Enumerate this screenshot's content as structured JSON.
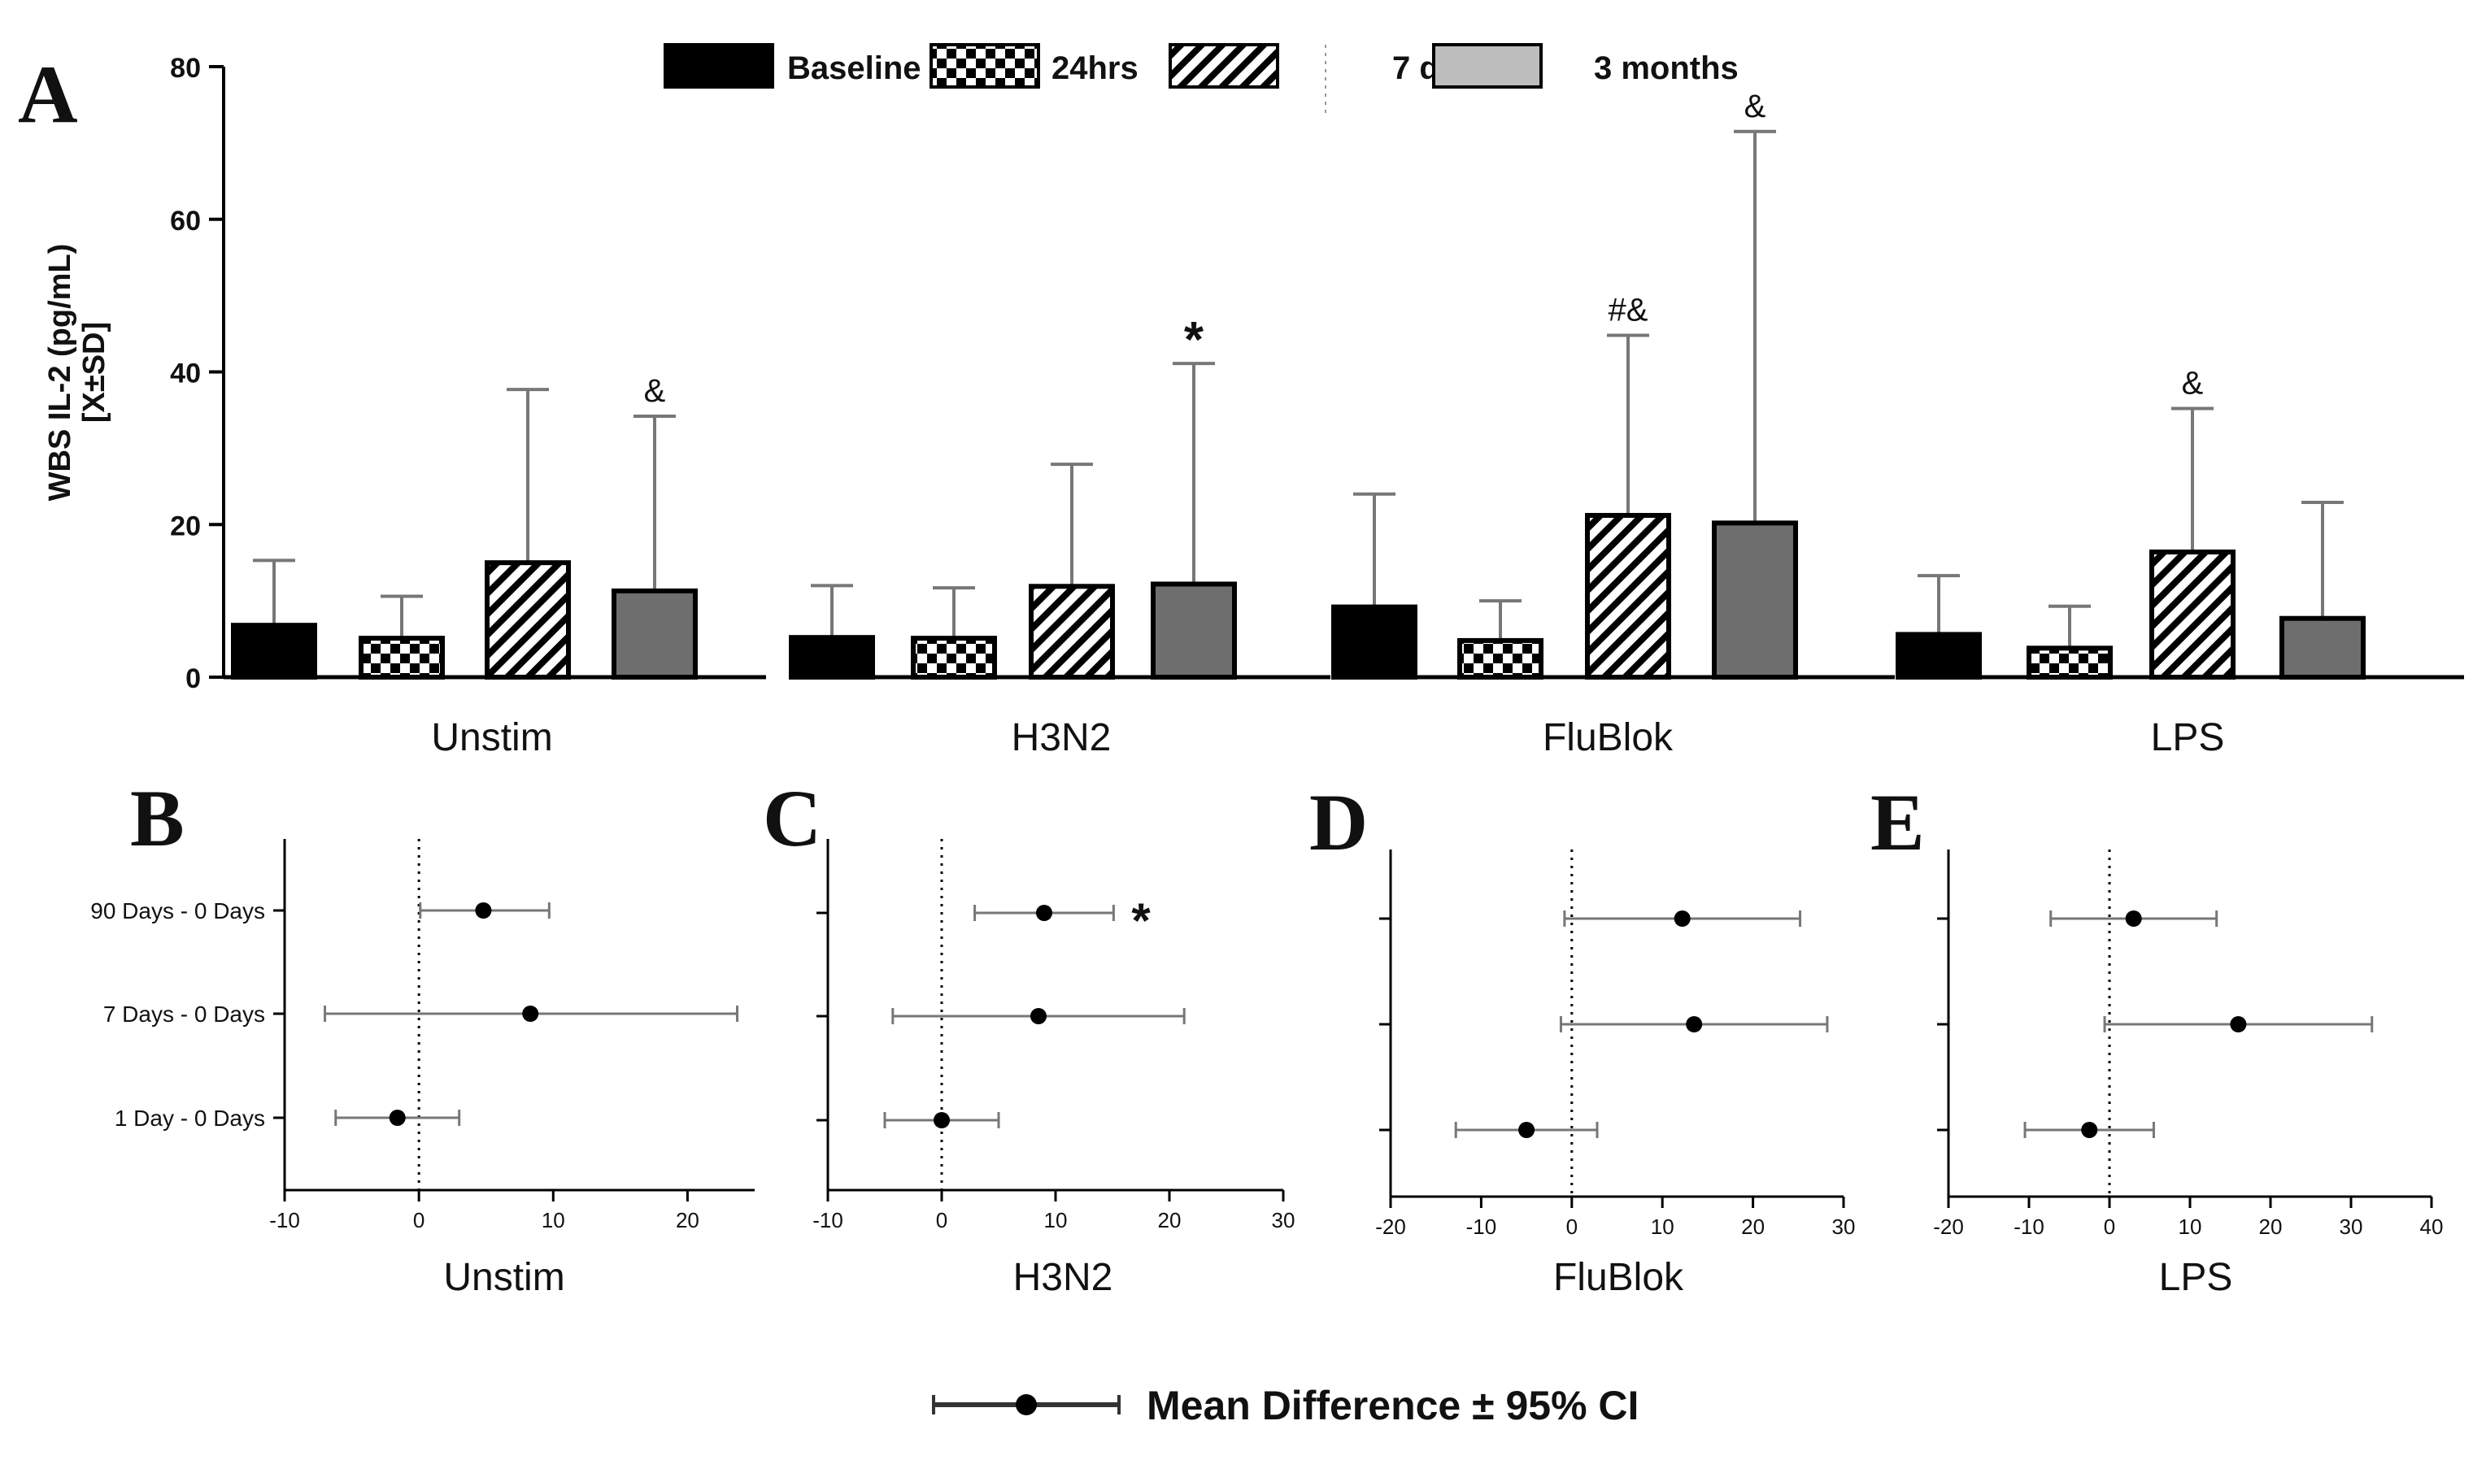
{
  "chart_data": [
    {
      "panel": "A",
      "type": "bar",
      "ylabel": "WBS IL-2 (pg/mL)",
      "ylabel_line2": "[X±SD]",
      "ylim": [
        0,
        80
      ],
      "yticks": [
        0,
        20,
        40,
        60,
        80
      ],
      "categories": [
        "Unstim",
        "H3N2",
        "FluBlok",
        "LPS"
      ],
      "legend_position": "top-center",
      "series": [
        {
          "name": "Baseline",
          "pattern": "solid-black",
          "values": [
            6.8,
            5.2,
            9.2,
            5.6
          ],
          "sd": [
            8.5,
            6.8,
            14.8,
            7.7
          ],
          "annotations": [
            "",
            "",
            "",
            ""
          ]
        },
        {
          "name": "24hrs",
          "pattern": "checker",
          "values": [
            5.1,
            5.1,
            4.8,
            3.8
          ],
          "sd": [
            5.5,
            6.6,
            5.2,
            5.5
          ],
          "annotations": [
            "",
            "",
            "",
            ""
          ]
        },
        {
          "name": "7 days",
          "pattern": "hatch",
          "values": [
            15.0,
            11.9,
            21.2,
            16.4
          ],
          "sd": [
            22.7,
            16.0,
            23.6,
            18.8
          ],
          "annotations": [
            "",
            "",
            "#&",
            "&"
          ]
        },
        {
          "name": "3 months",
          "pattern": "solid-gray",
          "values": [
            11.3,
            12.2,
            20.2,
            7.7
          ],
          "sd": [
            22.9,
            28.9,
            51.3,
            15.2
          ],
          "annotations": [
            "&",
            "*",
            "&",
            ""
          ]
        }
      ]
    },
    {
      "panel": "B",
      "type": "scatter",
      "subtype": "forest",
      "xlabel": "Unstim",
      "xlim": [
        -10,
        25
      ],
      "xticks": [
        -10,
        0,
        10,
        20
      ],
      "comparisons": [
        "90 Days - 0 Days",
        "7 Days - 0 Days",
        "1 Day - 0 Days"
      ],
      "points": [
        {
          "mean": 4.8,
          "ci": [
            0.1,
            9.7
          ],
          "annotation": ""
        },
        {
          "mean": 8.3,
          "ci": [
            -7.0,
            23.7
          ],
          "annotation": ""
        },
        {
          "mean": -1.6,
          "ci": [
            -6.2,
            3.0
          ],
          "annotation": ""
        }
      ]
    },
    {
      "panel": "C",
      "type": "scatter",
      "subtype": "forest",
      "xlabel": "H3N2",
      "xlim": [
        -10,
        30
      ],
      "xticks": [
        -10,
        0,
        10,
        20,
        30
      ],
      "points": [
        {
          "mean": 9.0,
          "ci": [
            2.9,
            15.1
          ],
          "annotation": "*"
        },
        {
          "mean": 8.5,
          "ci": [
            -4.3,
            21.3
          ],
          "annotation": ""
        },
        {
          "mean": 0.0,
          "ci": [
            -5.0,
            5.0
          ],
          "annotation": ""
        }
      ]
    },
    {
      "panel": "D",
      "type": "scatter",
      "subtype": "forest",
      "xlabel": "FluBlok",
      "xlim": [
        -20,
        30
      ],
      "xticks": [
        -20,
        -10,
        0,
        10,
        20,
        30
      ],
      "points": [
        {
          "mean": 12.2,
          "ci": [
            -0.8,
            25.2
          ],
          "annotation": ""
        },
        {
          "mean": 13.5,
          "ci": [
            -1.2,
            28.2
          ],
          "annotation": ""
        },
        {
          "mean": -5.0,
          "ci": [
            -12.8,
            2.8
          ],
          "annotation": ""
        }
      ]
    },
    {
      "panel": "E",
      "type": "scatter",
      "subtype": "forest",
      "xlabel": "LPS",
      "xlim": [
        -20,
        40
      ],
      "xticks": [
        -20,
        -10,
        0,
        10,
        20,
        30,
        40
      ],
      "points": [
        {
          "mean": 3.0,
          "ci": [
            -7.3,
            13.3
          ],
          "annotation": ""
        },
        {
          "mean": 16.0,
          "ci": [
            -0.6,
            32.6
          ],
          "annotation": ""
        },
        {
          "mean": -2.5,
          "ci": [
            -10.5,
            5.5
          ],
          "annotation": ""
        }
      ]
    }
  ],
  "legend_bottom": "Mean Difference ± 95% CI",
  "colors": {
    "baseline": "#000000",
    "gray_bar": "#6e6e6e",
    "error": "#777777"
  }
}
